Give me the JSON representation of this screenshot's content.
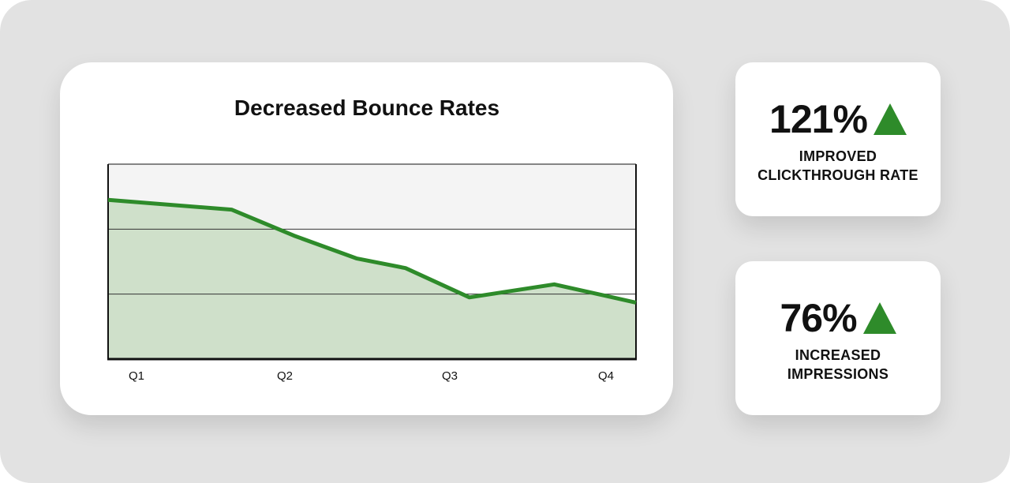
{
  "chart_data": {
    "type": "area",
    "title": "Decreased Bounce Rates",
    "categories": [
      "Q1",
      "Q2",
      "Q3",
      "Q4"
    ],
    "x": [
      0,
      0.83,
      1.25,
      1.67,
      2.0,
      2.43,
      3.0,
      3.55
    ],
    "series": [
      {
        "values": [
          2.45,
          2.3,
          1.9,
          1.55,
          1.4,
          0.95,
          1.15,
          0.87
        ]
      }
    ],
    "xlim": [
      0,
      3.55
    ],
    "ylim": [
      0,
      3
    ],
    "grid": true,
    "colors": {
      "line": "#2e8b2a",
      "fill": "#cfe0ca",
      "top_band": "#f4f4f4"
    }
  },
  "stats": [
    {
      "value": "121%",
      "label_line1": "IMPROVED",
      "label_line2": "CLICKTHROUGH RATE",
      "icon": "triangle-up-icon"
    },
    {
      "value": "76%",
      "label_line1": "INCREASED",
      "label_line2": "IMPRESSIONS",
      "icon": "triangle-up-icon"
    }
  ],
  "accent": "#2e8b2a"
}
